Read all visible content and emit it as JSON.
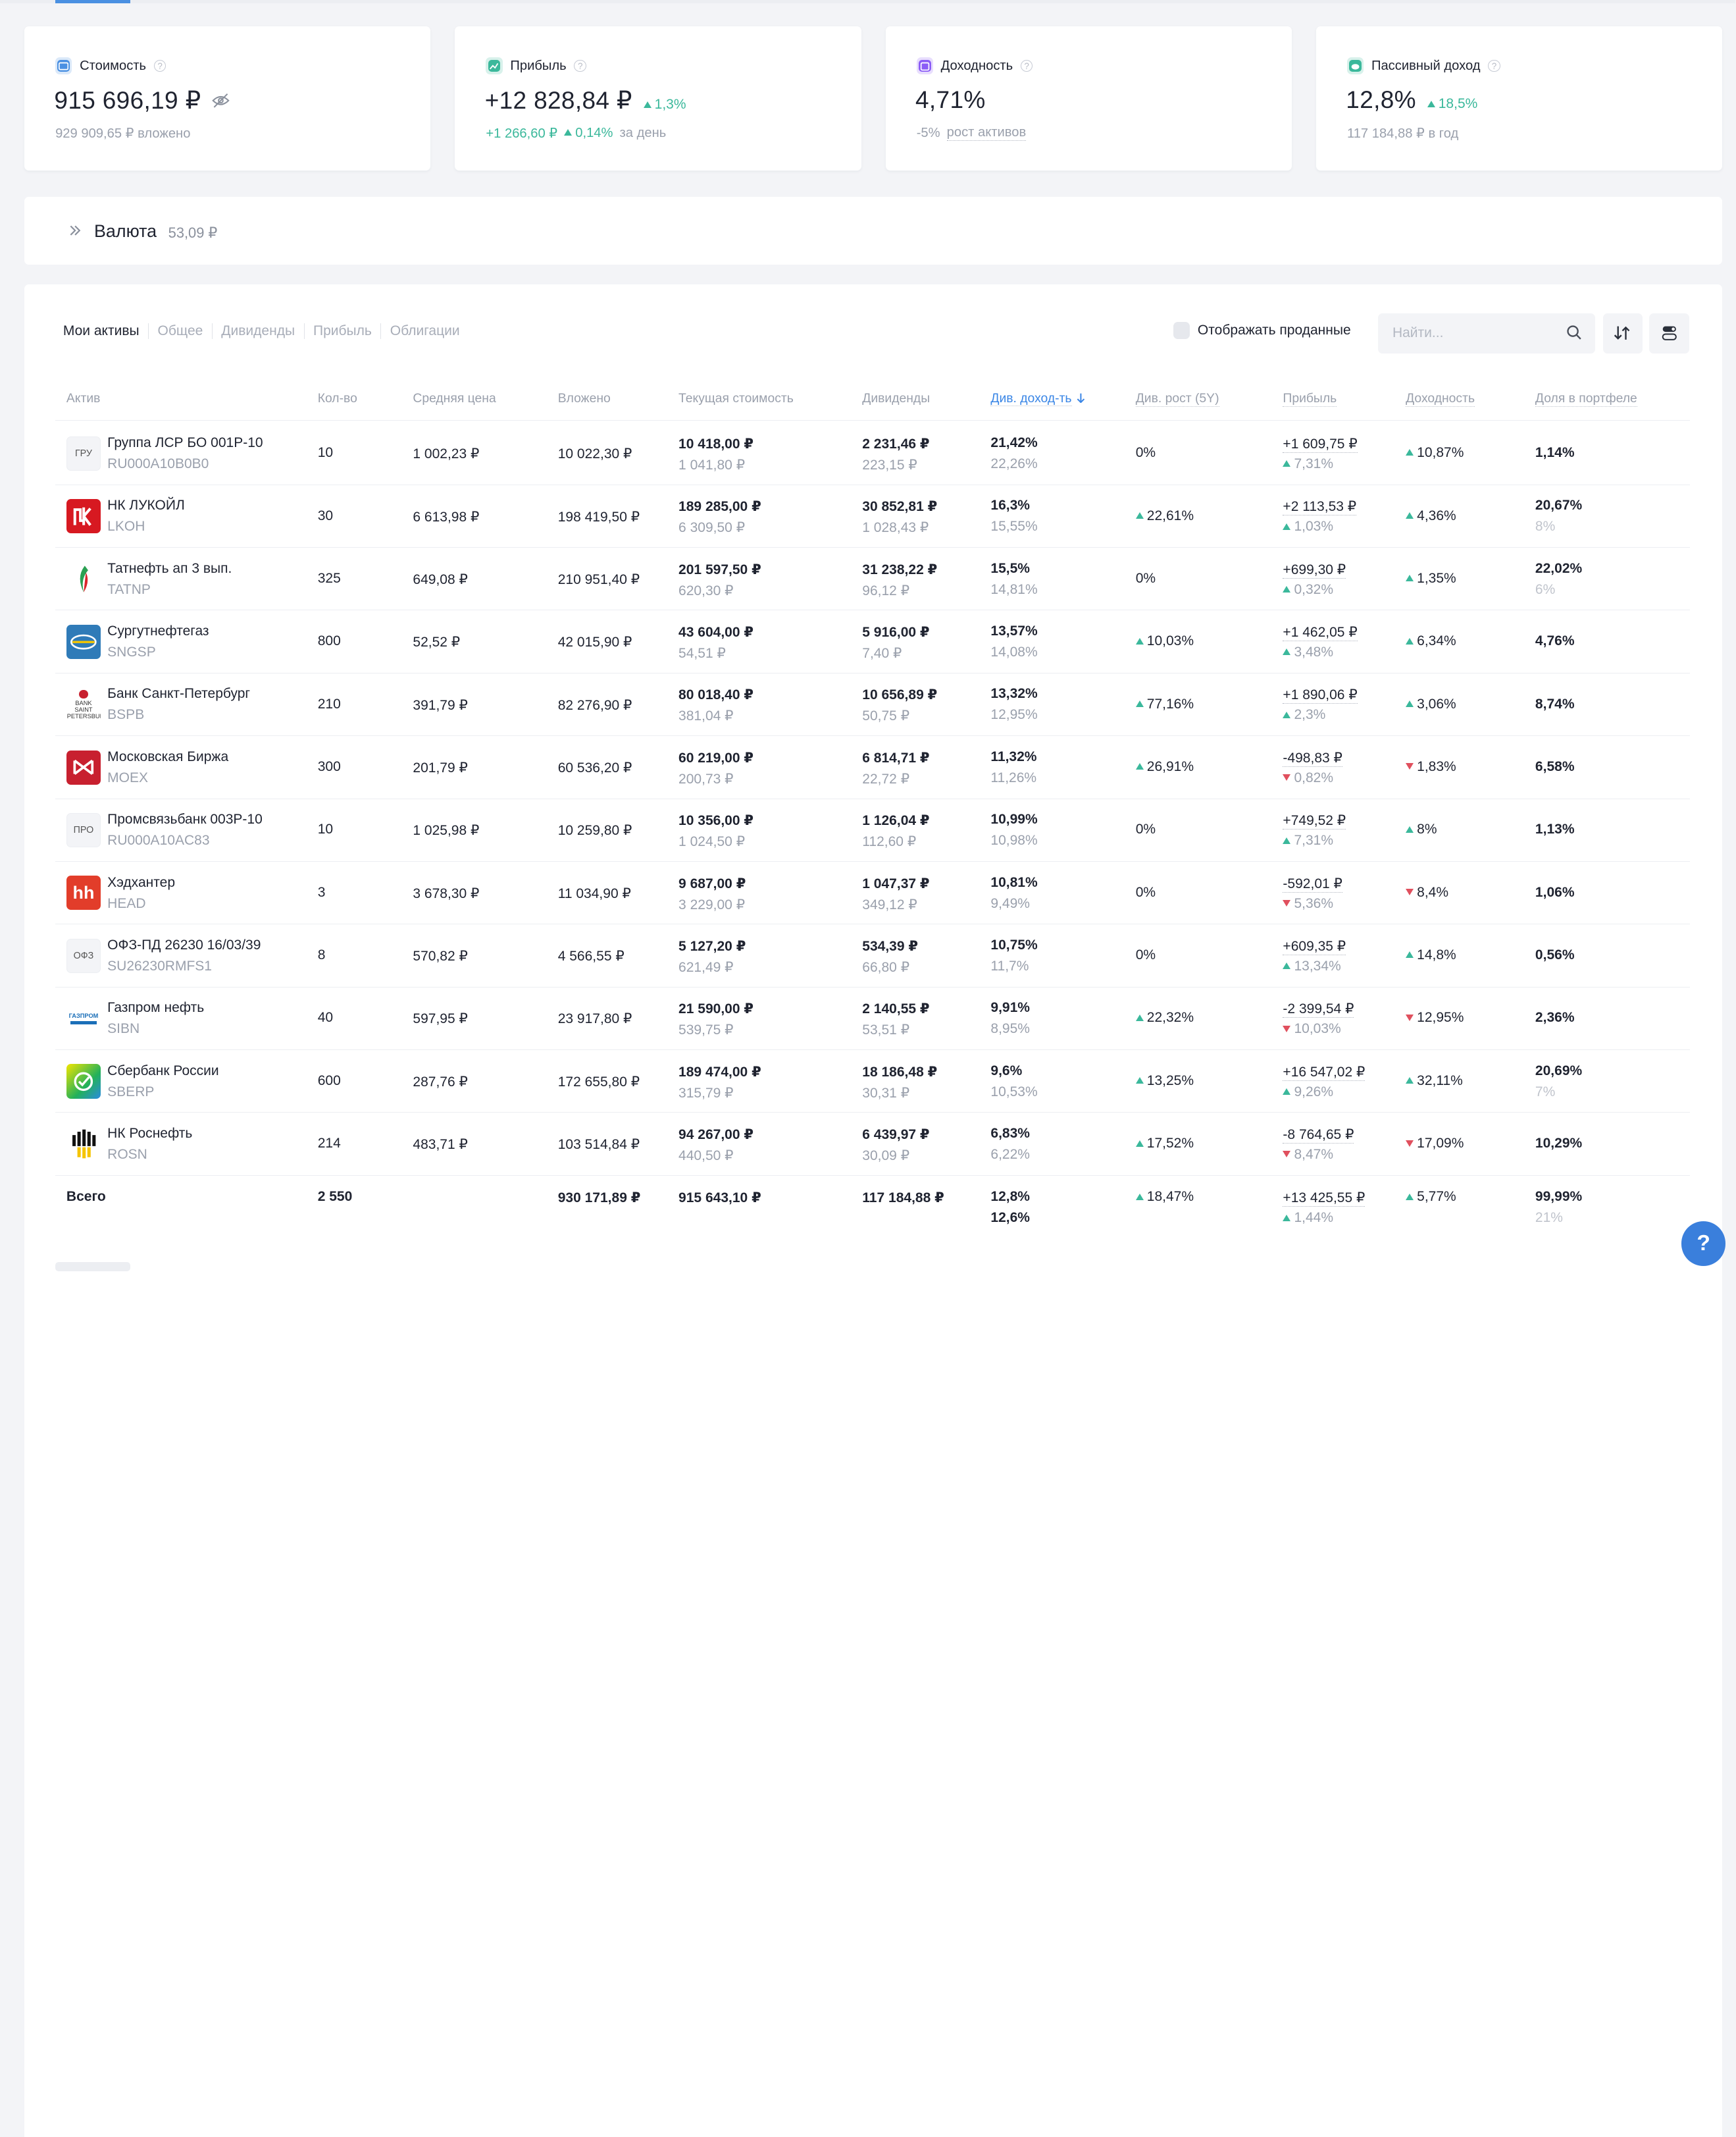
{
  "cards": [
    {
      "title": "Стоимость",
      "value": "915 696,19 ₽",
      "change": "",
      "sub1": "929 909,65 ₽ вложено",
      "sub2": "",
      "sub3": "",
      "icon": "wallet-icon",
      "iconColor": "#4a90e2"
    },
    {
      "title": "Прибыль",
      "value": "+12 828,84 ₽",
      "change": "1,3%",
      "sub1": "+1 266,60 ₽",
      "sub2": "0,14%",
      "sub3": "за день",
      "icon": "chart-icon",
      "iconColor": "#3bb89b"
    },
    {
      "title": "Доходность",
      "value": "4,71%",
      "change": "",
      "sub1": "-5%",
      "sub2": "рост активов",
      "sub3": "",
      "icon": "calendar-icon",
      "iconColor": "#8b5cf6"
    },
    {
      "title": "Пассивный доход",
      "value": "12,8%",
      "change": "18,5%",
      "sub1": "117 184,88 ₽ в год",
      "sub2": "",
      "sub3": "",
      "icon": "piggy-icon",
      "iconColor": "#3bb89b"
    }
  ],
  "currency": {
    "title": "Валюта",
    "amount": "53,09 ₽"
  },
  "tabs": [
    "Мои активы",
    "Общее",
    "Дивиденды",
    "Прибыль",
    "Облигации"
  ],
  "show_sold": "Отображать проданные",
  "search": {
    "placeholder": "Найти..."
  },
  "headers": [
    "Актив",
    "Кол-во",
    "Средняя цена",
    "Вложено",
    "Текущая стоимость",
    "Дивиденды",
    "Див. доход-ть",
    "Див. рост (5Y)",
    "Прибыль",
    "Доходность",
    "Доля в портфеле"
  ],
  "rows": [
    {
      "name": "Группа ЛСР БО 001Р-10",
      "ticker": "RU000A10B0B0",
      "logo": "ГРУ",
      "logoType": "text",
      "qty": "10",
      "avg": "1 002,23 ₽",
      "inv": "10 022,30 ₽",
      "cur1": "10 418,00 ₽",
      "cur2": "1 041,80 ₽",
      "div1": "2 231,46 ₽",
      "div2": "223,15 ₽",
      "dy1": "21,42%",
      "dy2": "22,26%",
      "dg": "0%",
      "dgDir": "none",
      "p1": "+1 609,75 ₽",
      "p2": "7,31%",
      "pDir": "up",
      "ret": "10,87%",
      "retDir": "up",
      "sh1": "1,14%",
      "sh2": ""
    },
    {
      "name": "НК ЛУКОЙЛ",
      "ticker": "LKOH",
      "logo": "ЛУК",
      "logoType": "lukoil",
      "qty": "30",
      "avg": "6 613,98 ₽",
      "inv": "198 419,50 ₽",
      "cur1": "189 285,00 ₽",
      "cur2": "6 309,50 ₽",
      "div1": "30 852,81 ₽",
      "div2": "1 028,43 ₽",
      "dy1": "16,3%",
      "dy2": "15,55%",
      "dg": "22,61%",
      "dgDir": "up",
      "p1": "+2 113,53 ₽",
      "p2": "1,03%",
      "pDir": "up",
      "ret": "4,36%",
      "retDir": "up",
      "sh1": "20,67%",
      "sh2": "8%"
    },
    {
      "name": "Татнефть ап 3 вып.",
      "ticker": "TATNP",
      "logo": "",
      "logoType": "tatneft",
      "qty": "325",
      "avg": "649,08 ₽",
      "inv": "210 951,40 ₽",
      "cur1": "201 597,50 ₽",
      "cur2": "620,30 ₽",
      "div1": "31 238,22 ₽",
      "div2": "96,12 ₽",
      "dy1": "15,5%",
      "dy2": "14,81%",
      "dg": "0%",
      "dgDir": "none",
      "p1": "+699,30 ₽",
      "p2": "0,32%",
      "pDir": "up",
      "ret": "1,35%",
      "retDir": "up",
      "sh1": "22,02%",
      "sh2": "6%"
    },
    {
      "name": "Сургутнефтегаз",
      "ticker": "SNGSP",
      "logo": "",
      "logoType": "surgut",
      "qty": "800",
      "avg": "52,52 ₽",
      "inv": "42 015,90 ₽",
      "cur1": "43 604,00 ₽",
      "cur2": "54,51 ₽",
      "div1": "5 916,00 ₽",
      "div2": "7,40 ₽",
      "dy1": "13,57%",
      "dy2": "14,08%",
      "dg": "10,03%",
      "dgDir": "up",
      "p1": "+1 462,05 ₽",
      "p2": "3,48%",
      "pDir": "up",
      "ret": "6,34%",
      "retDir": "up",
      "sh1": "4,76%",
      "sh2": ""
    },
    {
      "name": "Банк Санкт-Петербург",
      "ticker": "BSPB",
      "logo": "BANK SAINT PETERSBURG",
      "logoType": "bspb",
      "qty": "210",
      "avg": "391,79 ₽",
      "inv": "82 276,90 ₽",
      "cur1": "80 018,40 ₽",
      "cur2": "381,04 ₽",
      "div1": "10 656,89 ₽",
      "div2": "50,75 ₽",
      "dy1": "13,32%",
      "dy2": "12,95%",
      "dg": "77,16%",
      "dgDir": "up",
      "p1": "+1 890,06 ₽",
      "p2": "2,3%",
      "pDir": "up",
      "ret": "3,06%",
      "retDir": "up",
      "sh1": "8,74%",
      "sh2": ""
    },
    {
      "name": "Московская Биржа",
      "ticker": "MOEX",
      "logo": "",
      "logoType": "moex",
      "qty": "300",
      "avg": "201,79 ₽",
      "inv": "60 536,20 ₽",
      "cur1": "60 219,00 ₽",
      "cur2": "200,73 ₽",
      "div1": "6 814,71 ₽",
      "div2": "22,72 ₽",
      "dy1": "11,32%",
      "dy2": "11,26%",
      "dg": "26,91%",
      "dgDir": "up",
      "p1": "-498,83 ₽",
      "p2": "0,82%",
      "pDir": "down",
      "ret": "1,83%",
      "retDir": "down",
      "sh1": "6,58%",
      "sh2": ""
    },
    {
      "name": "Промсвязьбанк 003Р-10",
      "ticker": "RU000A10AC83",
      "logo": "ПРО",
      "logoType": "text",
      "qty": "10",
      "avg": "1 025,98 ₽",
      "inv": "10 259,80 ₽",
      "cur1": "10 356,00 ₽",
      "cur2": "1 024,50 ₽",
      "div1": "1 126,04 ₽",
      "div2": "112,60 ₽",
      "dy1": "10,99%",
      "dy2": "10,98%",
      "dg": "0%",
      "dgDir": "none",
      "p1": "+749,52 ₽",
      "p2": "7,31%",
      "pDir": "up",
      "ret": "8%",
      "retDir": "up",
      "sh1": "1,13%",
      "sh2": ""
    },
    {
      "name": "Хэдхантер",
      "ticker": "HEAD",
      "logo": "hh",
      "logoType": "hh",
      "qty": "3",
      "avg": "3 678,30 ₽",
      "inv": "11 034,90 ₽",
      "cur1": "9 687,00 ₽",
      "cur2": "3 229,00 ₽",
      "div1": "1 047,37 ₽",
      "div2": "349,12 ₽",
      "dy1": "10,81%",
      "dy2": "9,49%",
      "dg": "0%",
      "dgDir": "none",
      "p1": "-592,01 ₽",
      "p2": "5,36%",
      "pDir": "down",
      "ret": "8,4%",
      "retDir": "down",
      "sh1": "1,06%",
      "sh2": ""
    },
    {
      "name": "ОФЗ-ПД 26230 16/03/39",
      "ticker": "SU26230RMFS1",
      "logo": "ОФЗ",
      "logoType": "text",
      "qty": "8",
      "avg": "570,82 ₽",
      "inv": "4 566,55 ₽",
      "cur1": "5 127,20 ₽",
      "cur2": "621,49 ₽",
      "div1": "534,39 ₽",
      "div2": "66,80 ₽",
      "dy1": "10,75%",
      "dy2": "11,7%",
      "dg": "0%",
      "dgDir": "none",
      "p1": "+609,35 ₽",
      "p2": "13,34%",
      "pDir": "up",
      "ret": "14,8%",
      "retDir": "up",
      "sh1": "0,56%",
      "sh2": ""
    },
    {
      "name": "Газпром нефть",
      "ticker": "SIBN",
      "logo": "ГАЗПРОМ",
      "logoType": "gazprom",
      "qty": "40",
      "avg": "597,95 ₽",
      "inv": "23 917,80 ₽",
      "cur1": "21 590,00 ₽",
      "cur2": "539,75 ₽",
      "div1": "2 140,55 ₽",
      "div2": "53,51 ₽",
      "dy1": "9,91%",
      "dy2": "8,95%",
      "dg": "22,32%",
      "dgDir": "up",
      "p1": "-2 399,54 ₽",
      "p2": "10,03%",
      "pDir": "down",
      "ret": "12,95%",
      "retDir": "down",
      "sh1": "2,36%",
      "sh2": ""
    },
    {
      "name": "Сбербанк России",
      "ticker": "SBERP",
      "logo": "",
      "logoType": "sber",
      "qty": "600",
      "avg": "287,76 ₽",
      "inv": "172 655,80 ₽",
      "cur1": "189 474,00 ₽",
      "cur2": "315,79 ₽",
      "div1": "18 186,48 ₽",
      "div2": "30,31 ₽",
      "dy1": "9,6%",
      "dy2": "10,53%",
      "dg": "13,25%",
      "dgDir": "up",
      "p1": "+16 547,02 ₽",
      "p2": "9,26%",
      "pDir": "up",
      "ret": "32,11%",
      "retDir": "up",
      "sh1": "20,69%",
      "sh2": "7%"
    },
    {
      "name": "НК Роснефть",
      "ticker": "ROSN",
      "logo": "",
      "logoType": "rosneft",
      "qty": "214",
      "avg": "483,71 ₽",
      "inv": "103 514,84 ₽",
      "cur1": "94 267,00 ₽",
      "cur2": "440,50 ₽",
      "div1": "6 439,97 ₽",
      "div2": "30,09 ₽",
      "dy1": "6,83%",
      "dy2": "6,22%",
      "dg": "17,52%",
      "dgDir": "up",
      "p1": "-8 764,65 ₽",
      "p2": "8,47%",
      "pDir": "down",
      "ret": "17,09%",
      "retDir": "down",
      "sh1": "10,29%",
      "sh2": ""
    }
  ],
  "total": {
    "label": "Всего",
    "qty": "2 550",
    "inv": "930 171,89 ₽",
    "cur": "915 643,10 ₽",
    "div": "117 184,88 ₽",
    "dy1": "12,8%",
    "dy2": "12,6%",
    "dg": "18,47%",
    "p1": "+13 425,55 ₽",
    "p2": "1,44%",
    "ret": "5,77%",
    "sh1": "99,99%",
    "sh2": "21%"
  },
  "help_label": "?"
}
